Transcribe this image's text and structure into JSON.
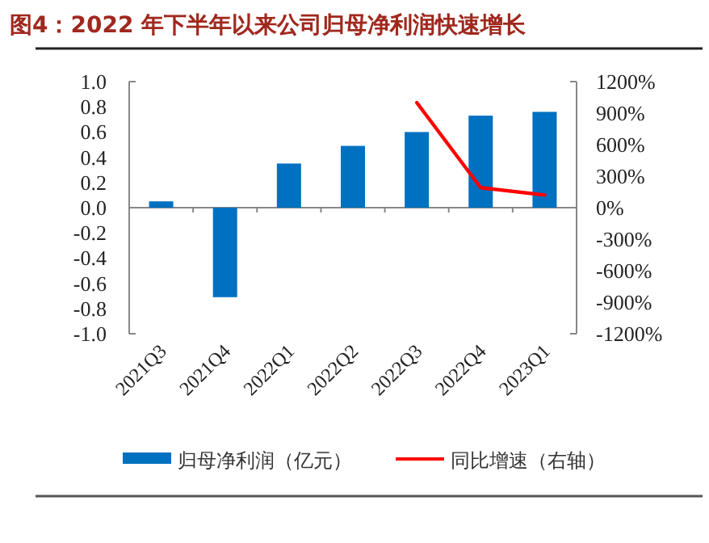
{
  "chart_data": {
    "type": "bar",
    "title": "图4：2022 年下半年以来公司归母净利润快速增长",
    "categories": [
      "2021Q3",
      "2021Q4",
      "2022Q1",
      "2022Q2",
      "2022Q3",
      "2022Q4",
      "2023Q1"
    ],
    "series": [
      {
        "name": "归母净利润（亿元）",
        "color": "#0070c0",
        "values": [
          0.05,
          -0.71,
          0.35,
          0.49,
          0.6,
          0.73,
          0.76
        ]
      },
      {
        "name": "同比增速（右轴）",
        "color": "#ff0000",
        "type": "line",
        "axis": "y2",
        "values": [
          null,
          null,
          null,
          null,
          1000,
          190,
          120
        ]
      }
    ],
    "ylim": [
      -1,
      1
    ],
    "yticks": [
      {
        "value": -1,
        "label": "-1.0"
      },
      {
        "value": -0.8,
        "label": "-0.8"
      },
      {
        "value": -0.6,
        "label": "-0.6"
      },
      {
        "value": -0.4,
        "label": "-0.4"
      },
      {
        "value": -0.2,
        "label": "-0.2"
      },
      {
        "value": 0,
        "label": "0.0"
      },
      {
        "value": 0.2,
        "label": "0.2"
      },
      {
        "value": 0.4,
        "label": "0.4"
      },
      {
        "value": 0.6,
        "label": "0.6"
      },
      {
        "value": 0.8,
        "label": "0.8"
      },
      {
        "value": 1,
        "label": "1.0"
      }
    ],
    "y2lim": [
      -1200,
      1200
    ],
    "y2ticks": [
      {
        "value": -1200,
        "label": "-1200%"
      },
      {
        "value": -900,
        "label": "-900%"
      },
      {
        "value": -600,
        "label": "-600%"
      },
      {
        "value": -300,
        "label": "-300%"
      },
      {
        "value": 0,
        "label": "0%"
      },
      {
        "value": 300,
        "label": "300%"
      },
      {
        "value": 600,
        "label": "600%"
      },
      {
        "value": 900,
        "label": "900%"
      },
      {
        "value": 1200,
        "label": "1200%"
      }
    ],
    "legend": "bottom"
  }
}
